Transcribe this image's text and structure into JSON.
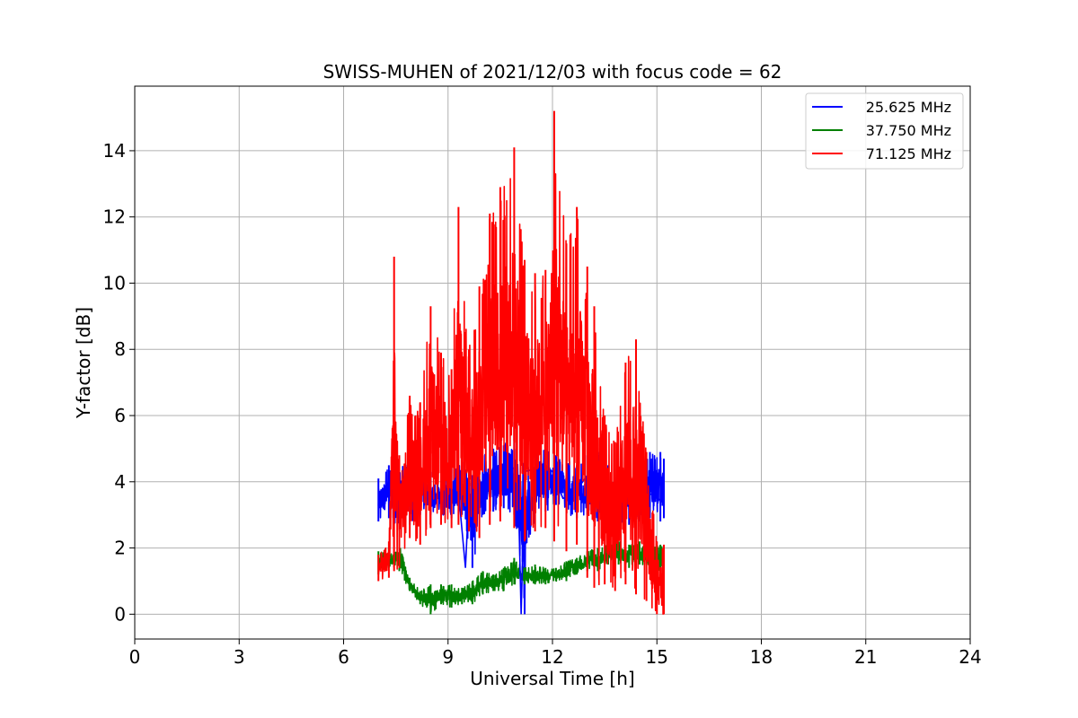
{
  "chart_data": {
    "type": "line",
    "title": "SWISS-MUHEN of 2021/12/03 with focus code = 62",
    "xlabel": "Universal Time [h]",
    "ylabel": "Y-factor [dB]",
    "xlim": [
      0,
      24
    ],
    "ylim": [
      -0.75,
      15.95
    ],
    "xticks": [
      0,
      3,
      6,
      9,
      12,
      15,
      18,
      21,
      24
    ],
    "yticks": [
      0,
      2,
      4,
      6,
      8,
      10,
      12,
      14
    ],
    "grid": true,
    "legend_position": "top-right",
    "series": [
      {
        "name": "25.625 MHz",
        "color": "#0000ff",
        "x": [
          7.0,
          7.3,
          7.5,
          7.7,
          8.0,
          8.3,
          8.6,
          9.0,
          9.3,
          9.5,
          9.6,
          9.8,
          10.0,
          10.3,
          10.6,
          11.0,
          11.1,
          11.2,
          11.5,
          11.8,
          12.0,
          12.3,
          12.6,
          13.0,
          13.3,
          13.6,
          13.9,
          14.2,
          14.6,
          15.0,
          15.2
        ],
        "y": [
          3.3,
          3.9,
          3.4,
          3.6,
          3.8,
          3.9,
          3.6,
          3.8,
          3.7,
          1.4,
          3.6,
          3.7,
          3.9,
          4.4,
          4.2,
          4.5,
          0.0,
          4.3,
          4.4,
          4.5,
          4.3,
          3.5,
          3.6,
          4.2,
          3.5,
          3.8,
          3.6,
          3.4,
          3.8,
          3.5,
          3.4
        ],
        "x_max": [
          7.0,
          7.3,
          7.6,
          7.9,
          8.2,
          8.5,
          8.8,
          9.1,
          9.4,
          9.7,
          10.0,
          10.3,
          10.6,
          10.9,
          11.2,
          11.5,
          11.8,
          12.1,
          12.4,
          12.7,
          13.0,
          13.3,
          13.6,
          13.9,
          14.2,
          14.5,
          14.8,
          15.1,
          15.2
        ],
        "y_max": [
          4.1,
          4.5,
          4.4,
          4.9,
          4.6,
          4.3,
          4.1,
          4.4,
          4.6,
          4.2,
          4.8,
          5.0,
          5.1,
          5.8,
          4.9,
          5.2,
          5.0,
          4.8,
          4.7,
          4.5,
          4.8,
          4.9,
          4.5,
          4.3,
          4.2,
          4.6,
          4.9,
          4.9,
          4.7
        ],
        "y_min": [
          2.8,
          2.9,
          2.6,
          2.7,
          3.0,
          3.0,
          2.9,
          2.9,
          3.0,
          1.4,
          3.0,
          3.1,
          3.2,
          3.0,
          0.0,
          3.2,
          3.1,
          3.3,
          3.0,
          2.9,
          3.0,
          2.8,
          2.9,
          2.7,
          2.7,
          2.8,
          2.9,
          2.8,
          2.9
        ]
      },
      {
        "name": "37.750 MHz",
        "color": "#008000",
        "x_max": [
          7.0,
          7.3,
          7.6,
          7.9,
          8.2,
          8.5,
          8.8,
          9.1,
          9.4,
          9.7,
          10.0,
          10.3,
          10.6,
          10.9,
          11.2,
          11.5,
          11.8,
          12.1,
          12.4,
          12.7,
          13.0,
          13.3,
          13.6,
          13.9,
          14.2,
          14.5,
          14.8,
          15.1,
          15.2
        ],
        "y_max": [
          1.9,
          2.0,
          2.1,
          1.1,
          0.7,
          0.9,
          0.9,
          0.9,
          0.8,
          1.0,
          1.3,
          1.2,
          1.4,
          1.7,
          1.4,
          1.5,
          1.4,
          1.4,
          1.6,
          1.7,
          1.9,
          2.0,
          2.1,
          2.2,
          2.1,
          2.2,
          2.0,
          2.1,
          2.0
        ],
        "y_min": [
          1.2,
          1.4,
          1.3,
          0.7,
          0.3,
          0.0,
          0.3,
          0.2,
          0.3,
          0.3,
          0.6,
          0.7,
          0.7,
          0.9,
          0.9,
          0.9,
          0.9,
          1.0,
          1.0,
          1.2,
          1.3,
          1.3,
          1.5,
          1.5,
          1.4,
          1.5,
          1.4,
          1.3,
          1.3
        ]
      },
      {
        "name": "71.125 MHz",
        "color": "#ff0000",
        "x_max": [
          7.0,
          7.3,
          7.45,
          7.6,
          7.9,
          8.2,
          8.5,
          8.8,
          9.1,
          9.3,
          9.6,
          9.9,
          10.2,
          10.5,
          10.9,
          11.2,
          11.5,
          11.8,
          12.05,
          12.4,
          12.7,
          13.0,
          13.2,
          13.5,
          13.8,
          14.1,
          14.4,
          14.7,
          15.0,
          15.2
        ],
        "y_max": [
          1.8,
          2.2,
          10.8,
          4.8,
          6.6,
          6.4,
          9.3,
          7.9,
          7.4,
          12.3,
          8.0,
          9.9,
          12.1,
          12.9,
          14.1,
          10.7,
          10.3,
          10.4,
          15.2,
          11.2,
          12.3,
          10.5,
          9.3,
          6.0,
          5.2,
          7.6,
          8.3,
          4.9,
          2.2,
          2.1
        ],
        "y_min": [
          1.0,
          1.1,
          1.3,
          1.4,
          2.3,
          2.1,
          2.6,
          2.7,
          2.6,
          2.7,
          2.5,
          2.3,
          2.7,
          2.8,
          2.6,
          2.2,
          2.5,
          2.6,
          2.2,
          1.9,
          2.1,
          1.1,
          0.8,
          0.9,
          0.7,
          0.9,
          0.6,
          0.4,
          0.0,
          0.0
        ]
      }
    ]
  }
}
